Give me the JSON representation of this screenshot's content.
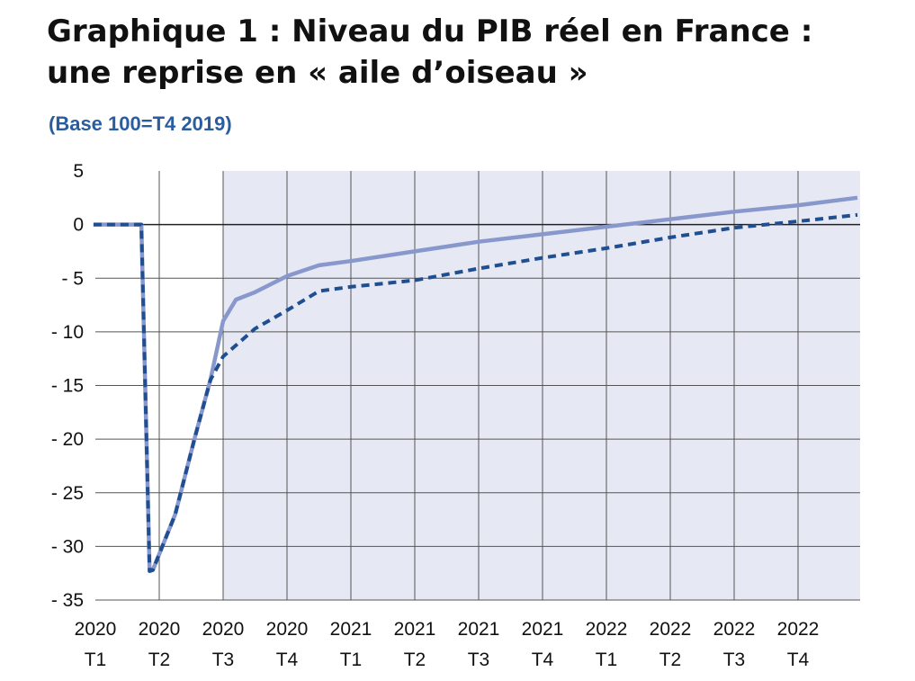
{
  "title_line1": "Graphique 1 : Niveau du PIB réel en France :",
  "title_line2": "une reprise en « aile d’oiseau »",
  "subtitle": "(Base 100=T4 2019)",
  "colors": {
    "title": "#111111",
    "subtitle": "#2a5da0",
    "shaded_band": "#e6e9f4",
    "solid_series": "#8898cc",
    "dashed_series": "#1f4e91",
    "grid": "#555555"
  },
  "chart_data": {
    "type": "line",
    "grid": true,
    "shaded_region_from_x": "2020 T3",
    "ylim": [
      -35,
      5
    ],
    "yticks": [
      5,
      0,
      -5,
      -10,
      -15,
      -20,
      -25,
      -30,
      -35
    ],
    "ytick_labels": [
      "5",
      "0",
      "- 5",
      "- 10",
      "- 15",
      "- 20",
      "- 25",
      "- 30",
      "- 35"
    ],
    "xticks": [
      {
        "x": 0,
        "year": "2020",
        "quarter": "T1"
      },
      {
        "x": 1,
        "year": "2020",
        "quarter": "T2"
      },
      {
        "x": 2,
        "year": "2020",
        "quarter": "T3"
      },
      {
        "x": 3,
        "year": "2020",
        "quarter": "T4"
      },
      {
        "x": 4,
        "year": "2021",
        "quarter": "T1"
      },
      {
        "x": 5,
        "year": "2021",
        "quarter": "T2"
      },
      {
        "x": 6,
        "year": "2021",
        "quarter": "T3"
      },
      {
        "x": 7,
        "year": "2021",
        "quarter": "T4"
      },
      {
        "x": 8,
        "year": "2022",
        "quarter": "T1"
      },
      {
        "x": 9,
        "year": "2022",
        "quarter": "T2"
      },
      {
        "x": 10,
        "year": "2022",
        "quarter": "T3"
      },
      {
        "x": 11,
        "year": "2022",
        "quarter": "T4"
      }
    ],
    "series": [
      {
        "style": "solid",
        "points": [
          [
            -0.03,
            0
          ],
          [
            0.72,
            0
          ],
          [
            0.85,
            -32.3
          ],
          [
            0.9,
            -32.2
          ],
          [
            1.25,
            -27
          ],
          [
            1.55,
            -20
          ],
          [
            1.8,
            -14.5
          ],
          [
            2.0,
            -9
          ],
          [
            2.2,
            -7
          ],
          [
            2.5,
            -6.3
          ],
          [
            3.0,
            -4.8
          ],
          [
            3.5,
            -3.8
          ],
          [
            4.0,
            -3.4
          ],
          [
            5.0,
            -2.5
          ],
          [
            6.0,
            -1.6
          ],
          [
            7.0,
            -0.9
          ],
          [
            8.0,
            -0.2
          ],
          [
            9.0,
            0.5
          ],
          [
            10.0,
            1.2
          ],
          [
            11.0,
            1.8
          ],
          [
            11.93,
            2.5
          ]
        ]
      },
      {
        "style": "dashed",
        "points": [
          [
            -0.03,
            0
          ],
          [
            0.72,
            0
          ],
          [
            0.85,
            -32.3
          ],
          [
            0.9,
            -32.2
          ],
          [
            1.25,
            -27
          ],
          [
            1.55,
            -20
          ],
          [
            1.8,
            -14.5
          ],
          [
            2.0,
            -12.3
          ],
          [
            2.5,
            -9.7
          ],
          [
            3.0,
            -8
          ],
          [
            3.5,
            -6.2
          ],
          [
            4.0,
            -5.8
          ],
          [
            5.0,
            -5.2
          ],
          [
            6.0,
            -4.1
          ],
          [
            7.0,
            -3.1
          ],
          [
            8.0,
            -2.2
          ],
          [
            9.0,
            -1.2
          ],
          [
            10.0,
            -0.3
          ],
          [
            11.0,
            0.3
          ],
          [
            11.93,
            0.9
          ]
        ]
      }
    ]
  }
}
